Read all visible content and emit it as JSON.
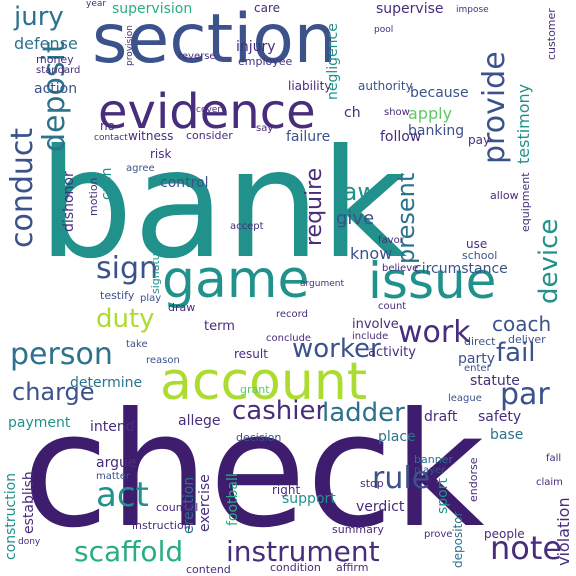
{
  "colors": {
    "indigo": "#3f1d6e",
    "purple": "#472d7b",
    "blue": "#3b528b",
    "slate": "#2c728e",
    "teal": "#21918c",
    "green": "#28ae80",
    "mint": "#5ec962",
    "lime": "#addc30",
    "yellow": "#d8e219"
  },
  "words": {
    "bank": "bank",
    "check": "check",
    "section": "section",
    "evidence": "evidence",
    "game": "game",
    "issue": "issue",
    "account": "account",
    "deposit": "deposit",
    "conduct": "conduct",
    "provide": "provide",
    "device": "device",
    "person": "person",
    "sign": "sign",
    "charge": "charge",
    "duty": "duty",
    "work": "work",
    "worker": "worker",
    "coach": "coach",
    "fail": "fail",
    "par": "par",
    "note": "note",
    "rule": "rule",
    "act": "act",
    "instrument": "instrument",
    "scaffold": "scaffold",
    "cashier": "cashier",
    "ladder": "ladder",
    "jury": "jury",
    "defense": "defense",
    "injury": "injury",
    "supervision": "supervision",
    "supervise": "supervise",
    "care": "care",
    "testimony": "testimony",
    "present": "present",
    "require": "require",
    "law": "law",
    "give": "give",
    "know": "know",
    "circumstance": "circumstance",
    "apply": "apply",
    "banking": "banking",
    "because": "because",
    "action": "action",
    "witness": "witness",
    "consider": "consider",
    "failure": "failure",
    "follow": "follow",
    "authority": "authority",
    "liability": "liability",
    "employee": "employee",
    "negligence": "negligence",
    "risk": "risk",
    "control": "control",
    "cash": "cash",
    "dishonor": "dishonor",
    "equipment": "equipment",
    "signature": "signature",
    "statute": "statute",
    "payment": "payment",
    "intend": "intend",
    "determine": "determine",
    "argue": "argue",
    "allege": "allege",
    "decision": "decision",
    "safety": "safety",
    "draft": "draft",
    "place": "place",
    "base": "base",
    "activity": "activity",
    "party": "party",
    "term": "term",
    "result": "result",
    "involve": "involve",
    "support": "support",
    "verdict": "verdict",
    "summary": "summary",
    "construction": "construction",
    "establish": "establish",
    "football": "football",
    "erection": "erection",
    "exercise": "exercise",
    "violation": "violation",
    "people": "people",
    "sport": "sport",
    "depositor": "depositor",
    "school": "school",
    "use": "use",
    "right": "right",
    "stop": "stop",
    "banner": "banner",
    "player": "player",
    "matter": "matter",
    "instruction": "instruction",
    "counsel": "counsel",
    "contend": "contend",
    "condition": "condition",
    "affirm": "affirm",
    "deliver": "deliver",
    "direct": "direct",
    "enter": "enter",
    "league": "league",
    "grant": "grant",
    "record": "record",
    "draw": "draw",
    "accept": "accept",
    "favor": "favor",
    "believe": "believe",
    "count": "count",
    "include": "include",
    "motion": "motion",
    "agree": "agree",
    "testify": "testify",
    "play": "play",
    "take": "take",
    "reason": "reason",
    "conclude": "conclude",
    "money": "money",
    "standard": "standard",
    "year": "year",
    "pool": "pool",
    "customer": "customer",
    "provision": "provision",
    "reverse": "reverse",
    "say": "say",
    "show": "show",
    "pay": "pay",
    "no": "no",
    "contact": "contact",
    "cover": "cover",
    "impose": "impose",
    "claim": "claim",
    "prove": "prove",
    "endorse": "endorse",
    "fall": "fall",
    "ch": "ch",
    "allow": "allow",
    "argument": "argument",
    "dony": "dony"
  }
}
